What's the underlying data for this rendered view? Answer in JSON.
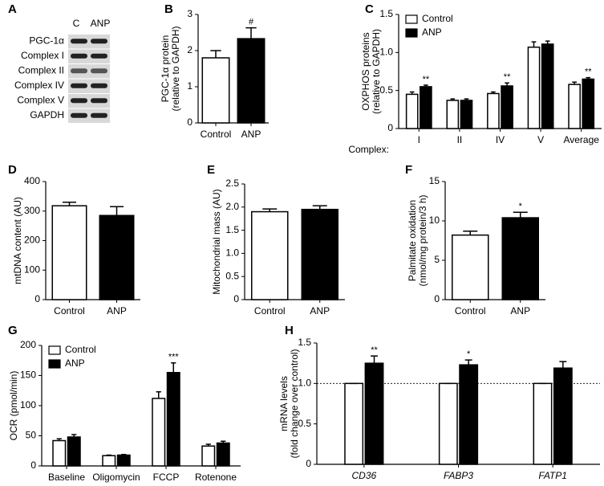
{
  "chart_data": [
    {
      "panel": "A",
      "type": "blot",
      "columns": [
        "C",
        "ANP"
      ],
      "rows": [
        "PGC-1α",
        "Complex I",
        "Complex II",
        "Complex IV",
        "Complex V",
        "GAPDH"
      ]
    },
    {
      "panel": "B",
      "type": "bar",
      "ylabel": [
        "PGC-1α protein",
        "(relative to GAPDH)"
      ],
      "categories": [
        "Control",
        "ANP"
      ],
      "values": [
        1.8,
        2.33
      ],
      "errors": [
        0.2,
        0.3
      ],
      "colors": [
        "#ffffff",
        "#000000"
      ],
      "annotations": [
        null,
        "#"
      ],
      "ylim": [
        0,
        3
      ],
      "yticks": [
        0,
        1,
        2,
        3
      ]
    },
    {
      "panel": "C",
      "type": "grouped-bar",
      "ylabel": [
        "OXPHOS proteins",
        "(relative to GAPDH)"
      ],
      "xprefix": "Complex:",
      "categories": [
        "I",
        "II",
        "IV",
        "V",
        "Average"
      ],
      "legend": "upper left",
      "series": [
        {
          "name": "Control",
          "color": "#ffffff",
          "values": [
            0.45,
            0.37,
            0.46,
            1.07,
            0.58
          ],
          "errors": [
            0.03,
            0.02,
            0.02,
            0.07,
            0.03
          ],
          "annotations": [
            null,
            null,
            null,
            null,
            null
          ]
        },
        {
          "name": "ANP",
          "color": "#000000",
          "values": [
            0.55,
            0.37,
            0.56,
            1.11,
            0.65
          ],
          "errors": [
            0.02,
            0.02,
            0.04,
            0.04,
            0.02
          ],
          "annotations": [
            "**",
            null,
            "**",
            null,
            "**"
          ]
        }
      ],
      "ylim": [
        0,
        1.5
      ],
      "yticks": [
        0,
        0.5,
        {
          "value": 1,
          "label": "1.0"
        },
        1.5
      ]
    },
    {
      "panel": "D",
      "type": "bar",
      "ylabel": [
        "mtDNA content (AU)"
      ],
      "categories": [
        "Control",
        "ANP"
      ],
      "values": [
        318,
        285
      ],
      "errors": [
        12,
        30
      ],
      "colors": [
        "#ffffff",
        "#000000"
      ],
      "annotations": [
        null,
        null
      ],
      "ylim": [
        0,
        400
      ],
      "yticks": [
        0,
        100,
        200,
        300,
        400
      ]
    },
    {
      "panel": "E",
      "type": "bar",
      "ylabel": [
        "Mitochondrial mass (AU)"
      ],
      "categories": [
        "Control",
        "ANP"
      ],
      "values": [
        1.9,
        1.95
      ],
      "errors": [
        0.06,
        0.08
      ],
      "colors": [
        "#ffffff",
        "#000000"
      ],
      "annotations": [
        null,
        null
      ],
      "ylim": [
        0,
        2.5
      ],
      "yticks": [
        0,
        0.5,
        {
          "value": 1,
          "label": "1.0"
        },
        1.5,
        {
          "value": 2,
          "label": "2.0"
        },
        2.5
      ]
    },
    {
      "panel": "F",
      "type": "bar",
      "ylabel": [
        "Palmitate oxidation",
        "(nmol/mg protein/3 h)"
      ],
      "categories": [
        "Control",
        "ANP"
      ],
      "values": [
        8.2,
        10.4
      ],
      "errors": [
        0.5,
        0.7
      ],
      "colors": [
        "#ffffff",
        "#000000"
      ],
      "annotations": [
        null,
        "*"
      ],
      "ylim": [
        0,
        15
      ],
      "yticks": [
        0,
        5,
        10,
        15
      ]
    },
    {
      "panel": "G",
      "type": "grouped-bar",
      "ylabel": [
        "OCR (pmol/min)"
      ],
      "categories": [
        "Baseline",
        "Oligomycin",
        "FCCP",
        "Rotenone"
      ],
      "legend": "upper left",
      "series": [
        {
          "name": "Control",
          "color": "#ffffff",
          "values": [
            42,
            17,
            112,
            33
          ],
          "errors": [
            3,
            1,
            11,
            3
          ],
          "annotations": [
            null,
            null,
            null,
            null
          ]
        },
        {
          "name": "ANP",
          "color": "#000000",
          "values": [
            48,
            18,
            155,
            38
          ],
          "errors": [
            4,
            1,
            16,
            3
          ],
          "annotations": [
            null,
            null,
            "***",
            null
          ]
        }
      ],
      "ylim": [
        0,
        200
      ],
      "yticks": [
        0,
        50,
        100,
        150,
        200
      ]
    },
    {
      "panel": "H",
      "type": "grouped-bar",
      "ylabel": [
        "mRNA levels",
        "(fold change over control)"
      ],
      "categories": [
        "CD36",
        "FABP3",
        "FATP1"
      ],
      "italic_categories": true,
      "hline": 1,
      "series": [
        {
          "color": "#ffffff",
          "values": [
            1,
            1,
            1
          ],
          "errors": [
            0,
            0,
            0
          ],
          "annotations": [
            null,
            null,
            null
          ]
        },
        {
          "color": "#000000",
          "values": [
            1.25,
            1.23,
            1.19
          ],
          "errors": [
            0.09,
            0.06,
            0.08
          ],
          "annotations": [
            "**",
            "*",
            null
          ]
        }
      ],
      "ylim": [
        0,
        1.5
      ],
      "yticks": [
        0,
        0.5,
        {
          "value": 1,
          "label": "1.0"
        },
        1.5
      ]
    }
  ]
}
